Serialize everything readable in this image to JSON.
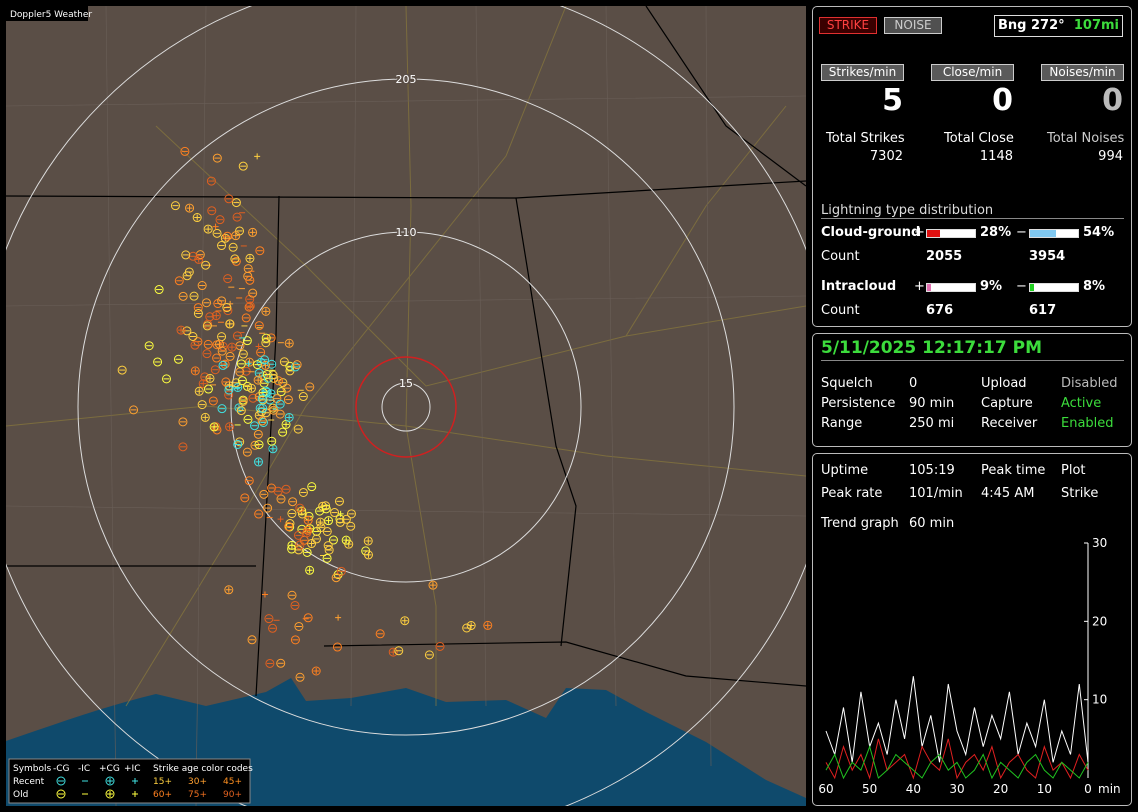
{
  "map": {
    "title": "Doppler5 Weather",
    "ring_labels": [
      "205",
      "110",
      "15"
    ],
    "legend": {
      "symbols": "Symbols",
      "cols": [
        "-CG",
        "-IC",
        "+CG",
        "+IC"
      ],
      "age_title": "Strike age color codes",
      "rows": [
        "Recent",
        "Old"
      ],
      "ages": [
        [
          "15+",
          "30+",
          "45+"
        ],
        [
          "60+",
          "75+",
          "90+"
        ]
      ]
    }
  },
  "controls": {
    "strike": "STRIKE",
    "noise": "NOISE",
    "bearing": "Bng 272°",
    "distance": "107mi"
  },
  "rates": [
    {
      "label": "Strikes/min",
      "value": "5",
      "total_label": "Total Strikes",
      "total": "7302"
    },
    {
      "label": "Close/min",
      "value": "0",
      "total_label": "Total Close",
      "total": "1148"
    },
    {
      "label": "Noises/min",
      "value": "0",
      "total_label": "Total Noises",
      "total": "994"
    }
  ],
  "distribution": {
    "title": "Lightning type distribution",
    "count_label": "Count",
    "plus": "+",
    "minus": "−",
    "rows": [
      {
        "name": "Cloud-ground",
        "plus": {
          "value": 28,
          "label": "28%"
        },
        "minus": {
          "value": 54,
          "label": "54%"
        },
        "plus_count": "2055",
        "minus_count": "3954"
      },
      {
        "name": "Intracloud",
        "plus": {
          "value": 9,
          "label": "9%"
        },
        "minus": {
          "value": 8,
          "label": "8%"
        },
        "plus_count": "676",
        "minus_count": "617"
      }
    ]
  },
  "status": {
    "datetime": "5/11/2025 12:17:17 PM",
    "rows": [
      [
        "Squelch",
        "0",
        "Upload",
        "Disabled"
      ],
      [
        "Persistence",
        "90 min",
        "Capture",
        "Active"
      ],
      [
        "Range",
        "250 mi",
        "Receiver",
        "Enabled"
      ]
    ]
  },
  "stats": {
    "rows": [
      [
        "Uptime",
        "105:19",
        "Peak time",
        "Plot"
      ],
      [
        "Peak rate",
        "101/min",
        "4:45 AM",
        "Strike"
      ]
    ],
    "trend_label": "Trend graph",
    "trend_value": "60 min"
  },
  "chart_data": {
    "type": "line",
    "x_label": "min",
    "x": [
      60,
      58,
      56,
      54,
      52,
      50,
      48,
      46,
      44,
      42,
      40,
      38,
      36,
      34,
      32,
      30,
      28,
      26,
      24,
      22,
      20,
      18,
      16,
      14,
      12,
      10,
      8,
      6,
      4,
      2,
      0
    ],
    "xlim": [
      60,
      0
    ],
    "ylim": [
      0,
      30
    ],
    "xticks": [
      60,
      50,
      40,
      30,
      20,
      10,
      0
    ],
    "yticks": [
      10,
      20,
      30
    ],
    "series": [
      {
        "color": "#ffffff",
        "values": [
          6,
          3,
          9,
          2,
          11,
          4,
          7,
          3,
          10,
          5,
          13,
          4,
          8,
          2,
          12,
          6,
          3,
          9,
          4,
          8,
          5,
          11,
          3,
          7,
          4,
          10,
          2,
          6,
          3,
          12,
          2
        ]
      },
      {
        "color": "#e02020",
        "values": [
          2,
          0,
          4,
          1,
          3,
          0,
          5,
          1,
          2,
          3,
          0,
          4,
          2,
          1,
          5,
          0,
          2,
          3,
          1,
          4,
          0,
          2,
          3,
          1,
          0,
          4,
          1,
          2,
          0,
          3,
          1
        ]
      },
      {
        "color": "#20c020",
        "values": [
          1,
          3,
          0,
          2,
          1,
          4,
          0,
          1,
          3,
          2,
          1,
          0,
          2,
          3,
          1,
          2,
          0,
          1,
          3,
          0,
          2,
          1,
          0,
          2,
          3,
          1,
          0,
          2,
          1,
          0,
          2
        ]
      }
    ]
  }
}
